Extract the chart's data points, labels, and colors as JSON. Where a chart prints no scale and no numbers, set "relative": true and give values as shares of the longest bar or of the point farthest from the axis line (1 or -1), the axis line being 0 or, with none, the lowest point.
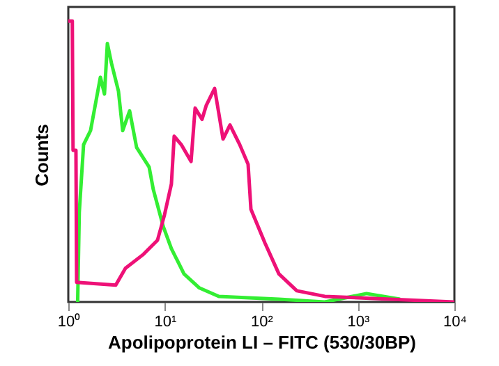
{
  "chart_data": {
    "type": "line",
    "xlabel": "Apolipoprotein LI – FITC (530/30BP)",
    "ylabel": "Counts",
    "relative": true,
    "log": "x",
    "grid": false,
    "xlim": [
      1,
      10000
    ],
    "xticks": [
      {
        "value": 1,
        "label": "10⁰"
      },
      {
        "value": 10,
        "label": "10¹"
      },
      {
        "value": 100,
        "label": "10²"
      },
      {
        "value": 1000,
        "label": "10³"
      },
      {
        "value": 10000,
        "label": "10⁴"
      }
    ],
    "series": [
      {
        "color": "#33ee33",
        "x": [
          1.25,
          1.3,
          1.44,
          1.7,
          2.15,
          2.37,
          2.54,
          2.8,
          3.31,
          3.66,
          4.32,
          5.1,
          6.88,
          7.6,
          9.6,
          11.7,
          15.8,
          22.8,
          36.3,
          152,
          454,
          1230,
          2735
        ],
        "values": [
          0,
          0.32,
          0.56,
          0.61,
          0.8,
          0.74,
          0.92,
          0.85,
          0.75,
          0.61,
          0.68,
          0.55,
          0.48,
          0.4,
          0.27,
          0.19,
          0.1,
          0.05,
          0.02,
          0.01,
          0,
          0.03,
          0.01
        ]
      },
      {
        "color": "#ee1177",
        "x": [
          1.0,
          1.1,
          1.12,
          1.2,
          1.22,
          3.1,
          3.91,
          6.02,
          8.4,
          9.92,
          11.7,
          12.5,
          14.8,
          18.7,
          20.6,
          24.3,
          26.9,
          32.8,
          36.3,
          40.1,
          47.3,
          59.7,
          72.9,
          78,
          109,
          152,
          233,
          454,
          10000
        ],
        "values": [
          1.0,
          1.0,
          0.54,
          0.54,
          0.07,
          0.06,
          0.12,
          0.17,
          0.22,
          0.31,
          0.42,
          0.59,
          0.56,
          0.5,
          0.69,
          0.65,
          0.7,
          0.76,
          0.67,
          0.58,
          0.63,
          0.56,
          0.49,
          0.33,
          0.21,
          0.1,
          0.04,
          0.02,
          0
        ]
      }
    ]
  }
}
